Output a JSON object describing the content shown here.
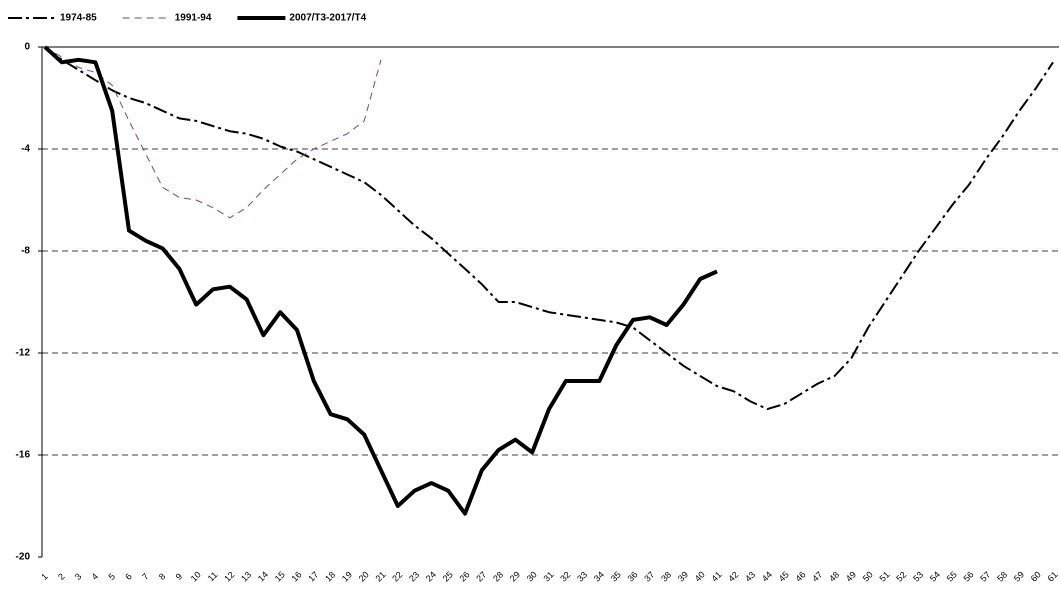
{
  "chart_data": {
    "type": "line",
    "categories": [
      "1",
      "2",
      "3",
      "4",
      "5",
      "6",
      "7",
      "8",
      "9",
      "10",
      "11",
      "12",
      "13",
      "14",
      "15",
      "16",
      "17",
      "18",
      "19",
      "20",
      "21",
      "22",
      "23",
      "24",
      "25",
      "26",
      "27",
      "28",
      "29",
      "30",
      "31",
      "32",
      "33",
      "34",
      "35",
      "36",
      "37",
      "38",
      "39",
      "40",
      "41",
      "42",
      "43",
      "44",
      "45",
      "46",
      "47",
      "48",
      "49",
      "50",
      "51",
      "52",
      "53",
      "54",
      "55",
      "56",
      "57",
      "58",
      "59",
      "60",
      "61"
    ],
    "series": [
      {
        "name": "1974-85",
        "color": "#000000",
        "dash": "dash-dot",
        "width": 2,
        "values": [
          0,
          -0.5,
          -0.9,
          -1.3,
          -1.7,
          -2.0,
          -2.2,
          -2.5,
          -2.8,
          -2.9,
          -3.1,
          -3.3,
          -3.4,
          -3.6,
          -3.9,
          -4.1,
          -4.4,
          -4.7,
          -5.0,
          -5.3,
          -5.8,
          -6.4,
          -7.0,
          -7.5,
          -8.1,
          -8.7,
          -9.3,
          -10.0,
          -10.0,
          -10.2,
          -10.4,
          -10.5,
          -10.6,
          -10.7,
          -10.8,
          -11.0,
          -11.5,
          -12.0,
          -12.5,
          -12.9,
          -13.3,
          -13.5,
          -13.9,
          -14.2,
          -14.0,
          -13.6,
          -13.2,
          -12.9,
          -12.2,
          -11.0,
          -10.0,
          -9.0,
          -8.0,
          -7.1,
          -6.2,
          -5.4,
          -4.4,
          -3.5,
          -2.5,
          -1.6,
          -0.6
        ]
      },
      {
        "name": "1991-94",
        "color": "#8b3a8b",
        "dash": "dashed",
        "width": 1,
        "values": [
          0,
          -0.4,
          -0.8,
          -1.0,
          -1.5,
          -2.9,
          -4.2,
          -5.5,
          -5.9,
          -6.0,
          -6.3,
          -6.7,
          -6.3,
          -5.6,
          -5.0,
          -4.4,
          -4.0,
          -3.7,
          -3.4,
          -2.9,
          -0.5,
          null,
          null,
          null,
          null,
          null,
          null,
          null,
          null,
          null,
          null,
          null,
          null,
          null,
          null,
          null,
          null,
          null,
          null,
          null,
          null,
          null,
          null,
          null,
          null,
          null,
          null,
          null,
          null,
          null,
          null,
          null,
          null,
          null,
          null,
          null,
          null,
          null,
          null,
          null,
          null
        ]
      },
      {
        "name": "2007/T3-2017/T4",
        "color": "#000000",
        "dash": "solid",
        "width": 4,
        "values": [
          0,
          -0.6,
          -0.5,
          -0.6,
          -2.5,
          -7.2,
          -7.6,
          -7.9,
          -8.7,
          -10.1,
          -9.5,
          -9.4,
          -9.9,
          -11.3,
          -10.4,
          -11.1,
          -13.1,
          -14.4,
          -14.6,
          -15.2,
          -16.6,
          -18.0,
          -17.4,
          -17.1,
          -17.4,
          -18.3,
          -16.6,
          -15.8,
          -15.4,
          -15.9,
          -14.2,
          -13.1,
          -13.1,
          -13.1,
          -11.7,
          -10.7,
          -10.6,
          -10.9,
          -10.1,
          -9.1,
          -8.8,
          null,
          null,
          null,
          null,
          null,
          null,
          null,
          null,
          null,
          null,
          null,
          null,
          null,
          null,
          null,
          null,
          null,
          null,
          null,
          null
        ]
      }
    ],
    "ylim": [
      -20,
      0
    ],
    "yticks": [
      0,
      -4,
      -8,
      -12,
      -16,
      -20
    ],
    "grid": true
  }
}
